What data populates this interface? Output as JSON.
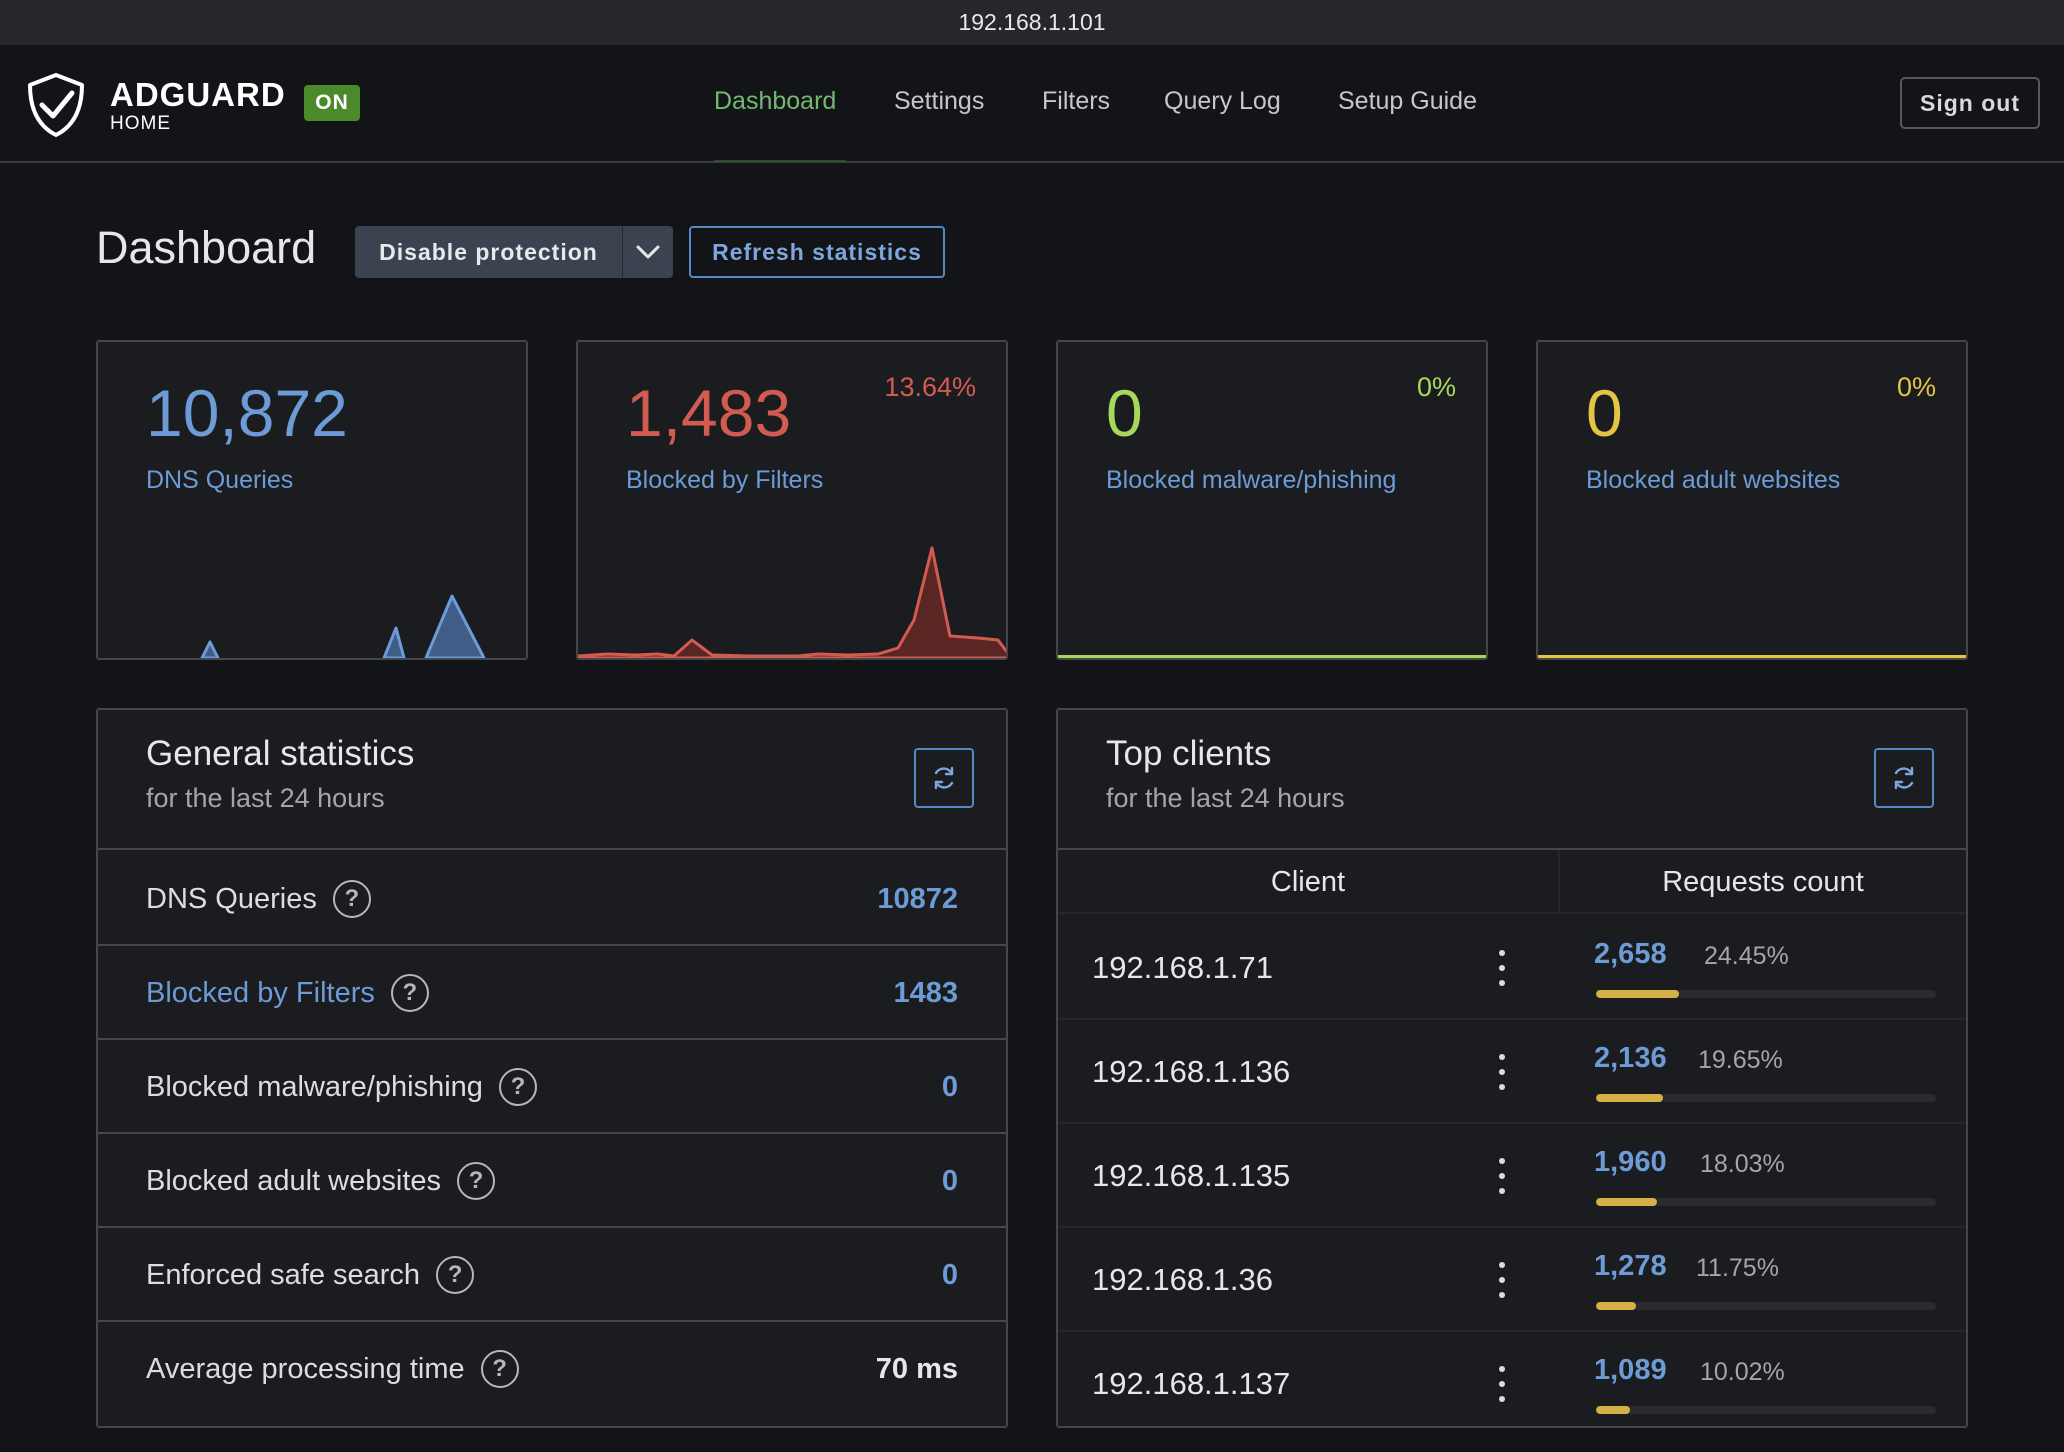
{
  "browser": {
    "url": "192.168.1.101"
  },
  "header": {
    "brand_name": "ADGUARD",
    "brand_sub": "HOME",
    "status_badge": "ON",
    "nav": [
      {
        "label": "Dashboard",
        "active": true
      },
      {
        "label": "Settings",
        "active": false
      },
      {
        "label": "Filters",
        "active": false
      },
      {
        "label": "Query Log",
        "active": false
      },
      {
        "label": "Setup Guide",
        "active": false
      }
    ],
    "sign_out": "Sign out"
  },
  "page": {
    "title": "Dashboard",
    "disable_protection": "Disable protection",
    "refresh_statistics": "Refresh statistics"
  },
  "cards": [
    {
      "value": "10,872",
      "label": "DNS Queries",
      "percent": "",
      "color": "#6c9bd6"
    },
    {
      "value": "1,483",
      "label": "Blocked by Filters",
      "percent": "13.64%",
      "color": "#d25b51"
    },
    {
      "value": "0",
      "label": "Blocked malware/phishing",
      "percent": "0%",
      "color": "#a8d85a"
    },
    {
      "value": "0",
      "label": "Blocked adult websites",
      "percent": "0%",
      "color": "#e5c343"
    }
  ],
  "general_stats": {
    "title": "General statistics",
    "subtitle": "for the last 24 hours",
    "rows": [
      {
        "label": "DNS Queries",
        "value": "10872"
      },
      {
        "label": "Blocked by Filters",
        "value": "1483"
      },
      {
        "label": "Blocked malware/phishing",
        "value": "0"
      },
      {
        "label": "Blocked adult websites",
        "value": "0"
      },
      {
        "label": "Enforced safe search",
        "value": "0"
      },
      {
        "label": "Average processing time",
        "value": "70 ms"
      }
    ]
  },
  "top_clients": {
    "title": "Top clients",
    "subtitle": "for the last 24 hours",
    "col_client": "Client",
    "col_count": "Requests count",
    "rows": [
      {
        "client": "192.168.1.71",
        "count": "2,658",
        "percent": "24.45%",
        "share": 0.2445
      },
      {
        "client": "192.168.1.136",
        "count": "2,136",
        "percent": "19.65%",
        "share": 0.1965
      },
      {
        "client": "192.168.1.135",
        "count": "1,960",
        "percent": "18.03%",
        "share": 0.1803
      },
      {
        "client": "192.168.1.36",
        "count": "1,278",
        "percent": "11.75%",
        "share": 0.1175
      },
      {
        "client": "192.168.1.137",
        "count": "1,089",
        "percent": "10.02%",
        "share": 0.1002
      }
    ]
  },
  "icons": {
    "brand": "adguard-shield-icon",
    "dropdown": "chevron-down-icon",
    "refresh": "refresh-icon",
    "help": "question-circle-icon",
    "menu": "vertical-dots-icon"
  },
  "colors": {
    "accent_green": "#72ba74",
    "link_blue": "#6c9bd6",
    "blocked_red": "#d25b51",
    "bar_yellow": "#d5b246"
  }
}
